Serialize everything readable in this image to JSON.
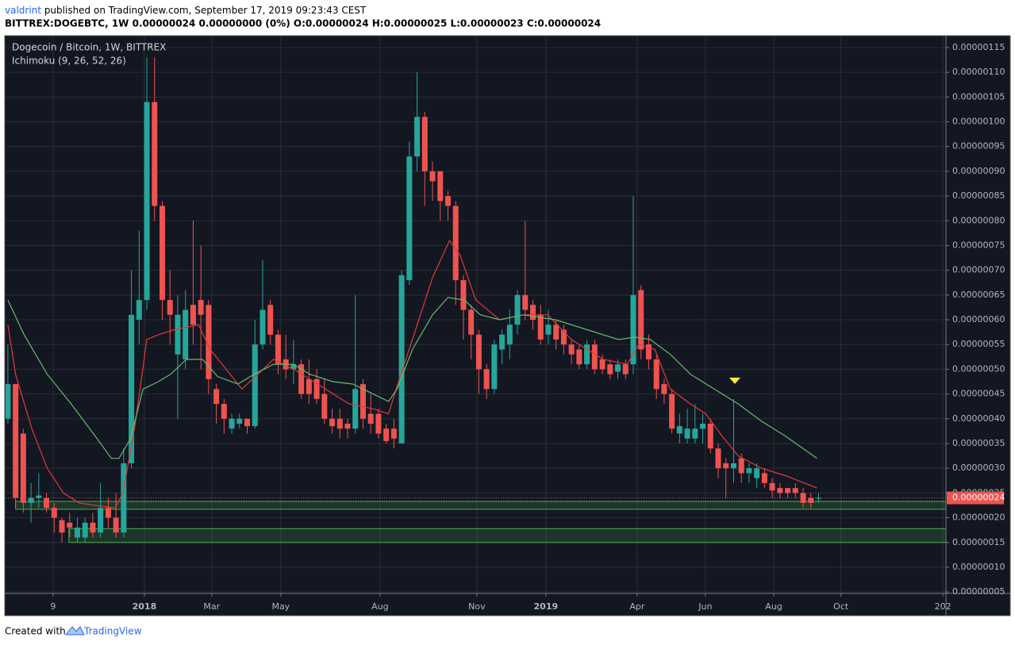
{
  "header": {
    "author": "valdrint",
    "published": "published on TradingView.com, September 17, 2019 09:23:43 CEST",
    "symbol_line": "BITTREX:DOGEBTC, 1W  0.00000024 0.00000000 (0%) O:0.00000024 H:0.00000025 L:0.00000023 C:0.00000024"
  },
  "chart_data": {
    "type": "candlestick",
    "title": "Dogecoin / Bitcoin, 1W, BITTREX",
    "up_color": "#26a69a",
    "down_color": "#ef5350",
    "grid": true,
    "open": [
      4e-07,
      4.7e-07,
      3.7e-07,
      2.3e-07,
      2.4e-07,
      2.4e-07,
      2.2e-07,
      1.95e-07,
      1.9e-07,
      1.6e-07,
      1.6e-07,
      1.9e-07,
      1.7e-07,
      2.2e-07,
      2e-07,
      1.7e-07,
      3.1e-07,
      6e-07,
      6.4e-07,
      1.04e-06,
      8.3e-07,
      6.4e-07,
      5.3e-07,
      5.2e-07,
      6.3e-07,
      6.4e-07,
      6.3e-07,
      4.6e-07,
      4.3e-07,
      3.8e-07,
      3.9e-07,
      4e-07,
      3.85e-07,
      5.5e-07,
      6.3e-07,
      5.7e-07,
      5.2e-07,
      5e-07,
      5.1e-07,
      4.8e-07,
      4.8e-07,
      4.5e-07,
      4e-07,
      4e-07,
      3.9e-07,
      3.8e-07,
      4.7e-07,
      4.1e-07,
      4.1e-07,
      3.8e-07,
      3.8e-07,
      3.5e-07,
      6.8e-07,
      9.3e-07,
      1.01e-06,
      9e-07,
      9e-07,
      8.5e-07,
      8.3e-07,
      6.8e-07,
      6.2e-07,
      5.7e-07,
      5e-07,
      4.6e-07,
      5.4e-07,
      5.5e-07,
      5.9e-07,
      6.5e-07,
      6.3e-07,
      6.1e-07,
      5.7e-07,
      5.9e-07,
      5.8e-07,
      5.5e-07,
      5.4e-07,
      5.1e-07,
      5.5e-07,
      5.2e-07,
      5.1e-07,
      4.95e-07,
      5.1e-07,
      5.1e-07,
      6.6e-07,
      5.5e-07,
      5.2e-07,
      4.7e-07,
      4.5e-07,
      3.7e-07,
      3.6e-07,
      3.6e-07,
      3.8e-07,
      3.9e-07,
      3.4e-07,
      3.1e-07,
      3e-07,
      3.2e-07,
      2.9e-07,
      2.8e-07,
      2.9e-07,
      2.7e-07,
      2.6e-07,
      2.6e-07,
      2.6e-07,
      2.5e-07,
      2.4e-07,
      2.4e-07
    ],
    "high": [
      5.5e-07,
      4.7e-07,
      3.8e-07,
      2.7e-07,
      2.9e-07,
      2.5e-07,
      2.3e-07,
      2e-07,
      2.1e-07,
      2e-07,
      2e-07,
      2.1e-07,
      2.7e-07,
      2.4e-07,
      2.5e-07,
      3.4e-07,
      7e-07,
      7.8e-07,
      1.13e-06,
      1.13e-06,
      8.4e-07,
      7e-07,
      6.5e-07,
      6.6e-07,
      8e-07,
      7.5e-07,
      6.4e-07,
      4.7e-07,
      4.4e-07,
      4.1e-07,
      4.1e-07,
      4e-07,
      6e-07,
      7.2e-07,
      6.4e-07,
      5.8e-07,
      5.7e-07,
      5.6e-07,
      5.2e-07,
      5.2e-07,
      5e-07,
      4.8e-07,
      4.2e-07,
      4.2e-07,
      4e-07,
      6.5e-07,
      4.8e-07,
      4.5e-07,
      4.2e-07,
      3.9e-07,
      4e-07,
      7e-07,
      9.6e-07,
      1.1e-06,
      1.02e-06,
      9.2e-07,
      9e-07,
      8.6e-07,
      8.4e-07,
      6.9e-07,
      6.3e-07,
      5.8e-07,
      5.1e-07,
      5.6e-07,
      5.8e-07,
      6.2e-07,
      6.6e-07,
      8e-07,
      6.4e-07,
      6.3e-07,
      6.2e-07,
      6e-07,
      5.9e-07,
      5.6e-07,
      5.5e-07,
      5.6e-07,
      5.6e-07,
      5.3e-07,
      5.2e-07,
      5.2e-07,
      5.2e-07,
      8.5e-07,
      6.7e-07,
      5.7e-07,
      5.3e-07,
      4.8e-07,
      4.6e-07,
      4.1e-07,
      4.2e-07,
      4.3e-07,
      4.1e-07,
      4e-07,
      3.5e-07,
      3.2e-07,
      4.4e-07,
      3.3e-07,
      3.1e-07,
      3.1e-07,
      3e-07,
      2.8e-07,
      2.7e-07,
      2.6e-07,
      2.7e-07,
      2.6e-07,
      2.5e-07,
      2.5e-07
    ],
    "low": [
      3.9e-07,
      2.2e-07,
      2.1e-07,
      1.9e-07,
      2.2e-07,
      2.1e-07,
      1.7e-07,
      1.5e-07,
      1.6e-07,
      1.5e-07,
      1.5e-07,
      1.6e-07,
      1.6e-07,
      1.8e-07,
      1.6e-07,
      1.6e-07,
      3e-07,
      5.5e-07,
      6.2e-07,
      8e-07,
      6e-07,
      5.5e-07,
      4e-07,
      5e-07,
      5.5e-07,
      5e-07,
      4.5e-07,
      3.9e-07,
      3.7e-07,
      3.7e-07,
      3.8e-07,
      3.7e-07,
      3.8e-07,
      5.4e-07,
      5.5e-07,
      4.9e-07,
      4.8e-07,
      4.7e-07,
      4.4e-07,
      4.3e-07,
      4.3e-07,
      3.9e-07,
      3.7e-07,
      3.6e-07,
      3.6e-07,
      3.7e-07,
      3.8e-07,
      3.7e-07,
      3.6e-07,
      3.5e-07,
      3.4e-07,
      3.5e-07,
      6.7e-07,
      9e-07,
      8.3e-07,
      8.4e-07,
      8e-07,
      8e-07,
      6.3e-07,
      5.6e-07,
      5.2e-07,
      4.5e-07,
      4.4e-07,
      4.5e-07,
      5.1e-07,
      5.2e-07,
      5.7e-07,
      6e-07,
      5.8e-07,
      5.5e-07,
      5.5e-07,
      5.4e-07,
      5.3e-07,
      5.1e-07,
      5e-07,
      5e-07,
      4.9e-07,
      4.9e-07,
      4.8e-07,
      4.8e-07,
      4.8e-07,
      4.9e-07,
      5.2e-07,
      5e-07,
      4.4e-07,
      4.3e-07,
      3.7e-07,
      3.5e-07,
      3.5e-07,
      3.5e-07,
      3.5e-07,
      3.3e-07,
      2.8e-07,
      2.4e-07,
      2.7e-07,
      2.7e-07,
      2.7e-07,
      2.6e-07,
      2.6e-07,
      2.4e-07,
      2.4e-07,
      2.4e-07,
      2.4e-07,
      2.2e-07,
      2.2e-07,
      2.3e-07
    ],
    "close": [
      4.7e-07,
      2.4e-07,
      2.3e-07,
      2.4e-07,
      2.45e-07,
      2.2e-07,
      2e-07,
      1.7e-07,
      1.8e-07,
      1.8e-07,
      1.9e-07,
      1.7e-07,
      2.2e-07,
      2e-07,
      1.7e-07,
      3.1e-07,
      6.1e-07,
      6.4e-07,
      1.04e-06,
      8.3e-07,
      6.4e-07,
      6.1e-07,
      6.1e-07,
      6.2e-07,
      5.9e-07,
      6.1e-07,
      4.8e-07,
      4.3e-07,
      4e-07,
      4e-07,
      4e-07,
      3.85e-07,
      5.5e-07,
      6.2e-07,
      5.7e-07,
      5.1e-07,
      5e-07,
      5.1e-07,
      4.5e-07,
      4.5e-07,
      4.4e-07,
      4e-07,
      3.85e-07,
      3.8e-07,
      3.8e-07,
      4.6e-07,
      4e-07,
      3.9e-07,
      3.7e-07,
      3.55e-07,
      3.6e-07,
      6.9e-07,
      9.3e-07,
      1.01e-06,
      9e-07,
      8.8e-07,
      8.4e-07,
      8.3e-07,
      6.8e-07,
      6.2e-07,
      5.7e-07,
      5e-07,
      4.6e-07,
      5.5e-07,
      5.7e-07,
      5.9e-07,
      6.5e-07,
      6.2e-07,
      6e-07,
      5.6e-07,
      5.9e-07,
      5.6e-07,
      5.5e-07,
      5.3e-07,
      5.1e-07,
      5.5e-07,
      5e-07,
      5e-07,
      4.9e-07,
      5.1e-07,
      4.9e-07,
      6.5e-07,
      5.4e-07,
      5.2e-07,
      4.6e-07,
      4.5e-07,
      3.8e-07,
      3.85e-07,
      3.8e-07,
      3.8e-07,
      3.9e-07,
      3.4e-07,
      3e-07,
      3e-07,
      3.1e-07,
      2.9e-07,
      3e-07,
      3e-07,
      2.7e-07,
      2.55e-07,
      2.5e-07,
      2.5e-07,
      2.5e-07,
      2.3e-07,
      2.3e-07,
      2.4e-07
    ],
    "indicator": {
      "label": "Ichimoku (9, 26, 52, 26)",
      "lines": [
        {
          "color": "#e53935",
          "x": [
            0,
            1.0,
            3.1,
            5.1,
            7.2,
            9.2,
            11.3,
            13.9,
            14.9,
            16.4,
            18.0,
            19.5,
            21.6,
            24.7,
            26.2,
            28.8,
            30.3,
            32.4,
            34.4,
            37.0,
            40.1,
            44.2,
            47.3,
            49.3,
            50.9,
            52.4,
            55.0,
            57.2,
            58.6,
            60.6,
            63.7,
            66.8,
            69.9,
            73.0,
            77.1,
            80.2,
            81.7,
            83.8,
            85.8,
            88.4,
            90.4,
            92.5,
            94.6,
            97.6,
            100.7,
            104.8
          ],
          "values": [
            5.9e-07,
            4.9e-07,
            3.8e-07,
            3e-07,
            2.5e-07,
            2.3e-07,
            2.25e-07,
            2.2e-07,
            2.5e-07,
            3.8e-07,
            5.6e-07,
            5.7e-07,
            5.8e-07,
            5.9e-07,
            5.4e-07,
            4.9e-07,
            4.6e-07,
            4.9e-07,
            5.2e-07,
            5e-07,
            4.7e-07,
            4.3e-07,
            4.2e-07,
            4.1e-07,
            4.9e-07,
            5.6e-07,
            6.85e-07,
            7.6e-07,
            7.3e-07,
            6.4e-07,
            6e-07,
            6.1e-07,
            6.1e-07,
            5.6e-07,
            5.2e-07,
            5.1e-07,
            5.5e-07,
            5.4e-07,
            4.6e-07,
            4.3e-07,
            4.1e-07,
            3.65e-07,
            3.25e-07,
            3e-07,
            2.85e-07,
            2.6e-07
          ]
        },
        {
          "color": "#66bb6a",
          "x": [
            0,
            2.1,
            5.1,
            8.2,
            11.3,
            13.4,
            14.4,
            15.9,
            17.5,
            19.5,
            21.1,
            23.1,
            25.2,
            27.2,
            29.8,
            31.9,
            34.4,
            37.0,
            39.1,
            42.1,
            44.7,
            47.3,
            49.3,
            50.4,
            52.4,
            55.0,
            57.0,
            59.1,
            61.2,
            63.7,
            66.8,
            70.9,
            75.0,
            79.1,
            81.2,
            83.2,
            85.8,
            88.4,
            91.5,
            94.6,
            97.6,
            100.7,
            104.8
          ],
          "values": [
            6.4e-07,
            5.7e-07,
            4.9e-07,
            4.3e-07,
            3.65e-07,
            3.2e-07,
            3.2e-07,
            3.6e-07,
            4.6e-07,
            4.75e-07,
            4.9e-07,
            5.2e-07,
            5.2e-07,
            4.85e-07,
            4.7e-07,
            4.9e-07,
            5.1e-07,
            5.1e-07,
            4.9e-07,
            4.75e-07,
            4.7e-07,
            4.5e-07,
            4.35e-07,
            4.6e-07,
            5.4e-07,
            6.1e-07,
            6.45e-07,
            6.4e-07,
            6.1e-07,
            6e-07,
            6.1e-07,
            6e-07,
            5.8e-07,
            5.6e-07,
            5.65e-07,
            5.6e-07,
            5.3e-07,
            4.9e-07,
            4.6e-07,
            4.3e-07,
            3.95e-07,
            3.65e-07,
            3.2e-07
          ]
        }
      ]
    },
    "zones": [
      {
        "start": 1.0,
        "from": 2.17e-07,
        "to": 2.33e-07,
        "color": "#4caf50"
      },
      {
        "start": 7.9,
        "from": 1.5e-07,
        "to": 1.78e-07,
        "color": "#4caf50"
      }
    ],
    "last_price": {
      "value": 2.4e-07,
      "label": "0.00000024"
    },
    "xlim": [
      -0.3,
      121.5
    ],
    "xticks": [
      {
        "value": 5.86,
        "label": "9"
      },
      {
        "value": 17.68,
        "label": "2018"
      },
      {
        "value": 26.4,
        "label": "Mar"
      },
      {
        "value": 35.35,
        "label": "May"
      },
      {
        "value": 48.2,
        "label": "Aug"
      },
      {
        "value": 60.74,
        "label": "Nov"
      },
      {
        "value": 69.68,
        "label": "2019"
      },
      {
        "value": 81.5,
        "label": "Apr"
      },
      {
        "value": 90.34,
        "label": "Jun"
      },
      {
        "value": 99.2,
        "label": "Aug"
      },
      {
        "value": 107.9,
        "label": "Oct"
      },
      {
        "value": 121.1,
        "label": "202"
      }
    ],
    "ylim": [
      4.7e-08,
      1.174e-06
    ],
    "yticks": [
      {
        "value": 5e-08,
        "label": "0.00000005"
      },
      {
        "value": 1e-07,
        "label": "0.00000010"
      },
      {
        "value": 1.5e-07,
        "label": "0.00000015"
      },
      {
        "value": 2e-07,
        "label": "0.00000020"
      },
      {
        "value": 2.5e-07,
        "label": "0.00000025"
      },
      {
        "value": 3e-07,
        "label": "0.00000030"
      },
      {
        "value": 3.5e-07,
        "label": "0.00000035"
      },
      {
        "value": 4e-07,
        "label": "0.00000040"
      },
      {
        "value": 4.5e-07,
        "label": "0.00000045"
      },
      {
        "value": 5e-07,
        "label": "0.00000050"
      },
      {
        "value": 5.5e-07,
        "label": "0.00000055"
      },
      {
        "value": 6e-07,
        "label": "0.00000060"
      },
      {
        "value": 6.5e-07,
        "label": "0.00000065"
      },
      {
        "value": 7e-07,
        "label": "0.00000070"
      },
      {
        "value": 7.5e-07,
        "label": "0.00000075"
      },
      {
        "value": 8e-07,
        "label": "0.00000080"
      },
      {
        "value": 8.5e-07,
        "label": "0.00000085"
      },
      {
        "value": 9e-07,
        "label": "0.00000090"
      },
      {
        "value": 9.5e-07,
        "label": "0.00000095"
      },
      {
        "value": 1e-06,
        "label": "0.00000100"
      },
      {
        "value": 1.05e-06,
        "label": "0.00000105"
      },
      {
        "value": 1.1e-06,
        "label": "0.00000110"
      },
      {
        "value": 1.15e-06,
        "label": "0.00000115"
      }
    ]
  },
  "footer": {
    "created": "Created with",
    "brand": "TradingView"
  }
}
